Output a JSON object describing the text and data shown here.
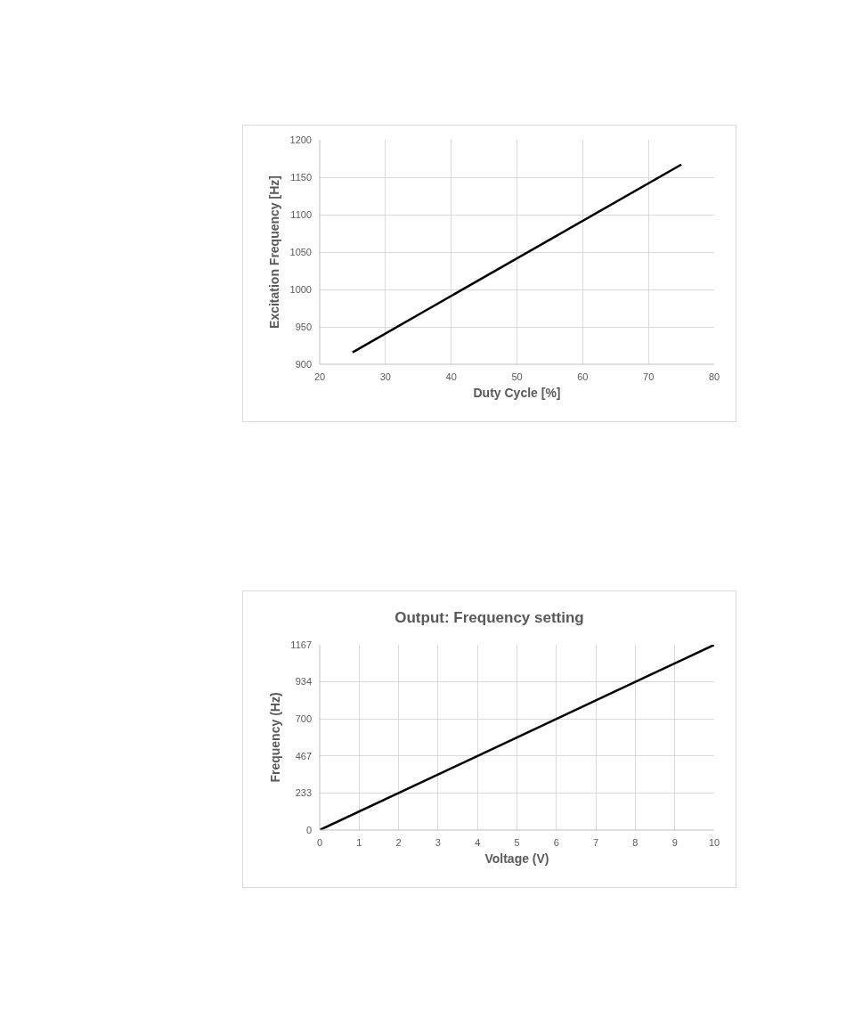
{
  "chart_data": [
    {
      "type": "line",
      "xlabel": "Duty Cycle [%]",
      "ylabel": "Excitation Frequency [Hz]",
      "x": [
        25,
        75
      ],
      "series": [
        {
          "color": "#000000",
          "values": [
            916,
            1167
          ]
        }
      ],
      "xlim": [
        20,
        80
      ],
      "xticks": [
        20,
        30,
        40,
        50,
        60,
        70,
        80
      ],
      "ylim": [
        900,
        1200
      ],
      "yticks": [
        900,
        950,
        1000,
        1050,
        1100,
        1150,
        1200
      ],
      "grid": true,
      "marker": "none",
      "line_style": "solid"
    },
    {
      "type": "line",
      "title": "Output: Frequency setting",
      "xlabel": "Voltage (V)",
      "ylabel": "Frequency (Hz)",
      "x": [
        0,
        10
      ],
      "series": [
        {
          "color": "#000000",
          "values": [
            0,
            1167
          ]
        }
      ],
      "xlim": [
        0,
        10
      ],
      "xticks": [
        0,
        1,
        2,
        3,
        4,
        5,
        6,
        7,
        8,
        9,
        10
      ],
      "ylim": [
        0,
        1167
      ],
      "yticks": [
        0,
        233,
        467,
        700,
        934,
        1167
      ],
      "grid": true,
      "marker": "none",
      "line_style": "solid"
    }
  ]
}
